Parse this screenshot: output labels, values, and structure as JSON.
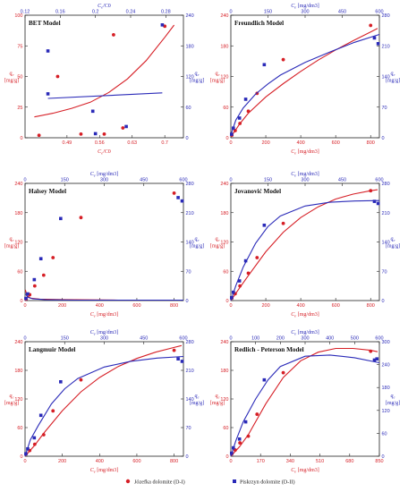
{
  "legend": [
    {
      "label": "Józefka dolomite (D-I)",
      "color": "#d61f26"
    },
    {
      "label": "Piskrzyn dolomite (D-II)",
      "color": "#2a2ab8"
    }
  ],
  "colors": {
    "red": "#d61f26",
    "blue": "#2a2ab8",
    "axis": "#222222"
  },
  "chart_data": [
    {
      "type": "scatter",
      "title": "BET Model",
      "xlabel": "Ce/C0",
      "ylabel": "qe [mg/g]",
      "x2label": "Ce/C0",
      "y2label": "qe [mg/g]",
      "xlim": [
        0.4,
        0.74
      ],
      "xticks": [
        0.49,
        0.56,
        0.63,
        0.7
      ],
      "ylim": [
        0,
        100
      ],
      "yticks": [
        0,
        25,
        50,
        75,
        100
      ],
      "x2lim": [
        0.12,
        0.3
      ],
      "x2ticks": [
        0.12,
        0.16,
        0.2,
        0.24,
        0.28
      ],
      "y2lim": [
        0,
        240
      ],
      "y2ticks": [
        0,
        60,
        120,
        180,
        240
      ],
      "series": [
        {
          "name": "Józefka dolomite (D-I)",
          "axis": "primary",
          "color": "#d61f26",
          "points": [
            [
              0.43,
              2
            ],
            [
              0.47,
              50
            ],
            [
              0.52,
              3
            ],
            [
              0.57,
              3
            ],
            [
              0.59,
              84
            ],
            [
              0.61,
              8
            ],
            [
              0.7,
              91
            ]
          ],
          "fit": [
            [
              0.42,
              17
            ],
            [
              0.46,
              20
            ],
            [
              0.5,
              24
            ],
            [
              0.54,
              29
            ],
            [
              0.58,
              37
            ],
            [
              0.62,
              48
            ],
            [
              0.66,
              63
            ],
            [
              0.7,
              82
            ],
            [
              0.72,
              92
            ]
          ]
        },
        {
          "name": "Piskrzyn dolomite (D-II)",
          "axis": "secondary",
          "color": "#2a2ab8",
          "points": [
            [
              0.146,
              170
            ],
            [
              0.146,
              86
            ],
            [
              0.197,
              52
            ],
            [
              0.2,
              8
            ],
            [
              0.235,
              22
            ],
            [
              0.276,
              221
            ]
          ],
          "fit": [
            [
              0.146,
              77
            ],
            [
              0.276,
              88
            ]
          ]
        }
      ]
    },
    {
      "type": "scatter",
      "title": "Freundlich Model",
      "xlabel": "Ce [mg/dm3]",
      "ylabel": "qe [mg/g]",
      "x2label": "Ce [mg/dm3]",
      "y2label": "qe [mg/g]",
      "xlim": [
        0,
        850
      ],
      "xticks": [
        0,
        200,
        400,
        600,
        800
      ],
      "ylim": [
        0,
        240
      ],
      "yticks": [
        0,
        60,
        120,
        180,
        240
      ],
      "x2lim": [
        0,
        600
      ],
      "x2ticks": [
        0,
        150,
        300,
        450,
        600
      ],
      "y2lim": [
        0,
        280
      ],
      "y2ticks": [
        0,
        70,
        140,
        210,
        280
      ],
      "series": [
        {
          "name": "Józefka dolomite (D-I)",
          "axis": "primary",
          "color": "#d61f26",
          "points": [
            [
              6,
              5
            ],
            [
              25,
              14
            ],
            [
              52,
              28
            ],
            [
              100,
              52
            ],
            [
              150,
              87
            ],
            [
              300,
              153
            ],
            [
              800,
              220
            ]
          ],
          "fit": [
            [
              2,
              3
            ],
            [
              25,
              14
            ],
            [
              50,
              27
            ],
            [
              100,
              48
            ],
            [
              200,
              80
            ],
            [
              300,
              106
            ],
            [
              400,
              130
            ],
            [
              500,
              152
            ],
            [
              600,
              172
            ],
            [
              700,
              190
            ],
            [
              800,
              207
            ],
            [
              840,
              214
            ]
          ]
        },
        {
          "name": "Piskrzyn dolomite (D-II)",
          "axis": "secondary",
          "color": "#2a2ab8",
          "points": [
            [
              3,
              8
            ],
            [
              10,
              22
            ],
            [
              35,
              45
            ],
            [
              60,
              88
            ],
            [
              135,
              167
            ],
            [
              580,
              228
            ],
            [
              595,
              215
            ]
          ],
          "fit": [
            [
              2,
              10
            ],
            [
              20,
              40
            ],
            [
              50,
              68
            ],
            [
              100,
              100
            ],
            [
              150,
              123
            ],
            [
              200,
              143
            ],
            [
              300,
              172
            ],
            [
              400,
              196
            ],
            [
              500,
              218
            ],
            [
              600,
              236
            ]
          ]
        }
      ]
    },
    {
      "type": "scatter",
      "title": "Halsey Model",
      "xlabel": "Ce [mg/dm3]",
      "ylabel": "qe [mg/g]",
      "x2label": "Ce [mg/dm3]",
      "y2label": "qe [mg/g]",
      "xlim": [
        0,
        850
      ],
      "xticks": [
        0,
        200,
        400,
        600,
        800
      ],
      "ylim": [
        0,
        240
      ],
      "yticks": [
        0,
        60,
        120,
        180,
        240
      ],
      "x2lim": [
        0,
        600
      ],
      "x2ticks": [
        0,
        150,
        300,
        450,
        600
      ],
      "y2lim": [
        0,
        280
      ],
      "y2ticks": [
        0,
        70,
        140,
        210,
        280
      ],
      "series": [
        {
          "name": "Józefka dolomite (D-I)",
          "axis": "primary",
          "color": "#d61f26",
          "points": [
            [
              6,
              3
            ],
            [
              25,
              12
            ],
            [
              52,
              30
            ],
            [
              100,
              52
            ],
            [
              150,
              88
            ],
            [
              300,
              170
            ],
            [
              800,
              220
            ]
          ],
          "fit": [
            [
              2,
              22
            ],
            [
              10,
              10
            ],
            [
              30,
              5
            ],
            [
              80,
              3
            ],
            [
              200,
              2
            ],
            [
              500,
              1
            ],
            [
              840,
              1
            ]
          ]
        },
        {
          "name": "Piskrzyn dolomite (D-II)",
          "axis": "secondary",
          "color": "#2a2ab8",
          "points": [
            [
              3,
              5
            ],
            [
              10,
              16
            ],
            [
              35,
              50
            ],
            [
              60,
              100
            ],
            [
              135,
              196
            ],
            [
              580,
              246
            ],
            [
              595,
              238
            ]
          ],
          "fit": [
            [
              2,
              16
            ],
            [
              10,
              8
            ],
            [
              30,
              4
            ],
            [
              80,
              2
            ],
            [
              200,
              1
            ],
            [
              500,
              1
            ],
            [
              600,
              1
            ]
          ]
        }
      ]
    },
    {
      "type": "scatter",
      "title": "Jovanović Model",
      "xlabel": "Ce [mg/dm3]",
      "ylabel": "qe [mg/g]",
      "x2label": "Ce [mg/dm3]",
      "y2label": "qe [mg/g]",
      "xlim": [
        0,
        850
      ],
      "xticks": [
        0,
        200,
        400,
        600,
        800
      ],
      "ylim": [
        0,
        240
      ],
      "yticks": [
        0,
        60,
        120,
        180,
        240
      ],
      "x2lim": [
        0,
        600
      ],
      "x2ticks": [
        0,
        150,
        300,
        450,
        600
      ],
      "y2lim": [
        0,
        280
      ],
      "y2ticks": [
        0,
        70,
        140,
        210,
        280
      ],
      "series": [
        {
          "name": "Józefka dolomite (D-I)",
          "axis": "primary",
          "color": "#d61f26",
          "points": [
            [
              6,
              5
            ],
            [
              25,
              14
            ],
            [
              52,
              30
            ],
            [
              100,
              56
            ],
            [
              150,
              88
            ],
            [
              300,
              158
            ],
            [
              800,
              225
            ]
          ],
          "fit": [
            [
              0,
              0
            ],
            [
              50,
              26
            ],
            [
              100,
              51
            ],
            [
              200,
              100
            ],
            [
              300,
              140
            ],
            [
              400,
              170
            ],
            [
              500,
              192
            ],
            [
              600,
              208
            ],
            [
              700,
              218
            ],
            [
              800,
              225
            ],
            [
              840,
              227
            ]
          ]
        },
        {
          "name": "Piskrzyn dolomite (D-II)",
          "axis": "secondary",
          "color": "#2a2ab8",
          "points": [
            [
              3,
              7
            ],
            [
              10,
              20
            ],
            [
              35,
              47
            ],
            [
              60,
              95
            ],
            [
              135,
              180
            ],
            [
              580,
              237
            ],
            [
              595,
              232
            ]
          ],
          "fit": [
            [
              0,
              0
            ],
            [
              20,
              35
            ],
            [
              50,
              80
            ],
            [
              100,
              137
            ],
            [
              150,
              177
            ],
            [
              200,
              202
            ],
            [
              300,
              226
            ],
            [
              400,
              235
            ],
            [
              500,
              238
            ],
            [
              600,
              239
            ]
          ]
        }
      ]
    },
    {
      "type": "scatter",
      "title": "Langmuir Model",
      "xlabel": "Ce [mg/dm3]",
      "ylabel": "qe [mg/g]",
      "x2label": "Ce [mg/dm3]",
      "y2label": "qe [mg/g]",
      "xlim": [
        0,
        850
      ],
      "xticks": [
        0,
        200,
        400,
        600,
        800
      ],
      "ylim": [
        0,
        240
      ],
      "yticks": [
        0,
        60,
        120,
        180,
        240
      ],
      "x2lim": [
        0,
        600
      ],
      "x2ticks": [
        0,
        150,
        300,
        450,
        600
      ],
      "y2lim": [
        0,
        280
      ],
      "y2ticks": [
        0,
        70,
        140,
        210,
        280
      ],
      "series": [
        {
          "name": "Józefka dolomite (D-I)",
          "axis": "primary",
          "color": "#d61f26",
          "points": [
            [
              6,
              5
            ],
            [
              25,
              12
            ],
            [
              52,
              25
            ],
            [
              100,
              45
            ],
            [
              150,
              95
            ],
            [
              300,
              160
            ],
            [
              800,
              222
            ]
          ],
          "fit": [
            [
              0,
              0
            ],
            [
              50,
              22
            ],
            [
              100,
              48
            ],
            [
              200,
              95
            ],
            [
              300,
              135
            ],
            [
              400,
              165
            ],
            [
              500,
              188
            ],
            [
              600,
              205
            ],
            [
              700,
              218
            ],
            [
              800,
              228
            ],
            [
              840,
              232
            ]
          ]
        },
        {
          "name": "Piskrzyn dolomite (D-II)",
          "axis": "secondary",
          "color": "#2a2ab8",
          "points": [
            [
              3,
              6
            ],
            [
              10,
              18
            ],
            [
              35,
              45
            ],
            [
              60,
              100
            ],
            [
              135,
              182
            ],
            [
              580,
              238
            ],
            [
              595,
              232
            ]
          ],
          "fit": [
            [
              0,
              0
            ],
            [
              20,
              40
            ],
            [
              50,
              75
            ],
            [
              100,
              128
            ],
            [
              150,
              165
            ],
            [
              200,
              190
            ],
            [
              300,
              218
            ],
            [
              400,
              232
            ],
            [
              500,
              240
            ],
            [
              600,
              244
            ]
          ]
        }
      ]
    },
    {
      "type": "scatter",
      "title": "Redlich - Peterson Model",
      "xlabel": "Ce [mg/dm3]",
      "ylabel": "qe [mg/g]",
      "x2label": "Ce [mg/dm3]",
      "y2label": "qe [mg/g]",
      "xlim": [
        0,
        850
      ],
      "xticks": [
        0,
        170,
        340,
        510,
        680,
        850
      ],
      "ylim": [
        0,
        240
      ],
      "yticks": [
        0,
        60,
        120,
        180,
        240
      ],
      "x2lim": [
        0,
        600
      ],
      "x2ticks": [
        0,
        100,
        200,
        300,
        400,
        500,
        600
      ],
      "y2lim": [
        0,
        300
      ],
      "y2ticks": [
        0,
        60,
        120,
        180,
        240,
        300
      ],
      "series": [
        {
          "name": "Józefka dolomite (D-I)",
          "axis": "primary",
          "color": "#d61f26",
          "points": [
            [
              6,
              5
            ],
            [
              25,
              13
            ],
            [
              52,
              28
            ],
            [
              100,
              42
            ],
            [
              150,
              88
            ],
            [
              300,
              175
            ],
            [
              800,
              220
            ]
          ],
          "fit": [
            [
              0,
              0
            ],
            [
              50,
              20
            ],
            [
              100,
              45
            ],
            [
              200,
              110
            ],
            [
              300,
              165
            ],
            [
              400,
              200
            ],
            [
              500,
              218
            ],
            [
              600,
              226
            ],
            [
              700,
              226
            ],
            [
              800,
              222
            ],
            [
              840,
              219
            ]
          ]
        },
        {
          "name": "Piskrzyn dolomite (D-II)",
          "axis": "secondary",
          "color": "#2a2ab8",
          "points": [
            [
              3,
              8
            ],
            [
              10,
              22
            ],
            [
              35,
              45
            ],
            [
              60,
              90
            ],
            [
              135,
              200
            ],
            [
              580,
              252
            ],
            [
              590,
              255
            ]
          ],
          "fit": [
            [
              0,
              0
            ],
            [
              20,
              40
            ],
            [
              50,
              90
            ],
            [
              100,
              150
            ],
            [
              150,
              200
            ],
            [
              200,
              235
            ],
            [
              300,
              262
            ],
            [
              400,
              265
            ],
            [
              500,
              258
            ],
            [
              600,
              245
            ]
          ]
        }
      ]
    }
  ]
}
